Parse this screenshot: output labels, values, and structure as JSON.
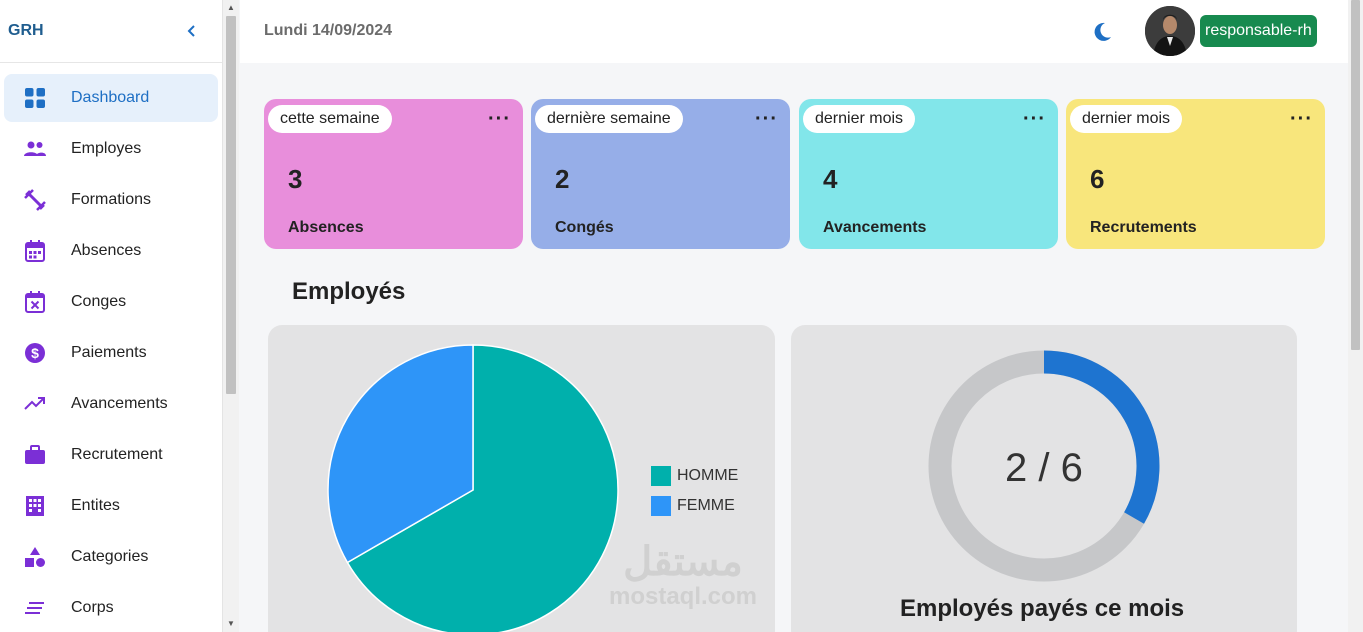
{
  "brand": {
    "name": "GRH"
  },
  "sidebar": {
    "items": [
      {
        "label": "Dashboard",
        "icon": "dashboard-icon",
        "active": true
      },
      {
        "label": "Employes",
        "icon": "people-icon"
      },
      {
        "label": "Formations",
        "icon": "dumbbell-icon"
      },
      {
        "label": "Absences",
        "icon": "calendar-icon"
      },
      {
        "label": "Conges",
        "icon": "calendar-x-icon"
      },
      {
        "label": "Paiements",
        "icon": "dollar-icon"
      },
      {
        "label": "Avancements",
        "icon": "trending-up-icon"
      },
      {
        "label": "Recrutement",
        "icon": "briefcase-icon"
      },
      {
        "label": "Entites",
        "icon": "building-icon"
      },
      {
        "label": "Categories",
        "icon": "shapes-icon"
      },
      {
        "label": "Corps",
        "icon": "list-icon"
      }
    ]
  },
  "topbar": {
    "date": "Lundi 14/09/2024",
    "role": "responsable-rh"
  },
  "cards": [
    {
      "period": "cette semaine",
      "value": "3",
      "label": "Absences",
      "color": "#e88edb"
    },
    {
      "period": "dernière semaine",
      "value": "2",
      "label": "Congés",
      "color": "#96aee8"
    },
    {
      "period": "dernier mois",
      "value": "4",
      "label": "Avancements",
      "color": "#82e6ea"
    },
    {
      "period": "dernier mois",
      "value": "6",
      "label": "Recrutements",
      "color": "#f8e67c"
    }
  ],
  "section": {
    "title": "Employés"
  },
  "chart_data": [
    {
      "type": "pie",
      "categories": [
        "HOMME",
        "FEMME"
      ],
      "values": [
        4,
        2
      ],
      "colors": [
        "#00b0ac",
        "#2e95f8"
      ]
    },
    {
      "type": "donut",
      "value": 2,
      "total": 6,
      "label": "2 / 6",
      "title": "Employés payés ce mois",
      "colors": [
        "#1e74d0",
        "#c6c7c9"
      ]
    }
  ],
  "watermark": {
    "arabic": "مستقل",
    "latin": "mostaql.com"
  },
  "colors": {
    "accent": "#1e6fc4",
    "role_badge": "#178a4f",
    "icon_purple": "#7b2fd6"
  }
}
